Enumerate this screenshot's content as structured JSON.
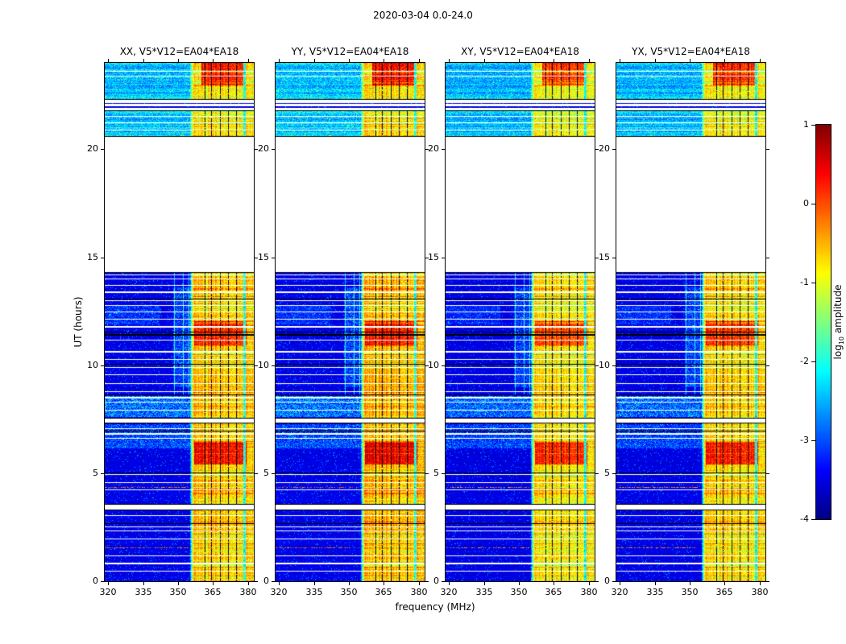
{
  "chart_data": {
    "type": "heatmap",
    "title": "2020-03-04 0.0-24.0",
    "xlabel": "frequency (MHz)",
    "ylabel": "UT (hours)",
    "x_range_mhz": [
      318.5,
      382.5
    ],
    "y_range_ut": [
      0,
      24
    ],
    "xticks": [
      320,
      335,
      350,
      365,
      380
    ],
    "yticks": [
      0,
      5,
      10,
      15,
      20
    ],
    "panels": [
      {
        "id": "XX",
        "title": "XX, V5*V12=EA04*EA18",
        "noise_seed": 11,
        "gain": 1.0
      },
      {
        "id": "YY",
        "title": "YY, V5*V12=EA04*EA18",
        "noise_seed": 23,
        "gain": 1.02
      },
      {
        "id": "XY",
        "title": "XY, V5*V12=EA04*EA18",
        "noise_seed": 37,
        "gain": 0.96
      },
      {
        "id": "YX",
        "title": "YX, V5*V12=EA04*EA18",
        "noise_seed": 49,
        "gain": 0.98
      }
    ],
    "colorbar": {
      "label": "log10 amplitude",
      "label_parts": {
        "prefix": "log",
        "sub": "10",
        "suffix": " amplitude"
      },
      "ticks": [
        1,
        0,
        -1,
        -2,
        -3,
        -4
      ],
      "vmin": -4,
      "vmax": 1,
      "colormap": "jet"
    },
    "data_blocks_ut": [
      [
        0,
        3.27
      ],
      [
        3.56,
        7.3
      ],
      [
        7.56,
        14.3
      ],
      [
        20.58,
        21.78
      ],
      [
        22.28,
        24
      ]
    ],
    "band_level_adjust_per_block": [
      0,
      0,
      0.01,
      -0.045,
      -0.03
    ],
    "rfi_band": {
      "f_start": 356.5,
      "f_end": 382.5,
      "edge_ramp_mhz": 1.5,
      "base_level": 0.68
    },
    "hot_spots": [
      {
        "ut": [
          5.4,
          6.45
        ],
        "f": [
          357.0,
          379.5
        ],
        "level": 0.88
      },
      {
        "ut": [
          10.9,
          12.05
        ],
        "f": [
          357.0,
          379.5
        ],
        "level": 0.84
      },
      {
        "ut": [
          22.95,
          24.0
        ],
        "f": [
          360.0,
          378.5
        ],
        "level": 0.86
      }
    ],
    "low_freq_patches": [
      {
        "ut": [
          6.15,
          7.28
        ],
        "f": [
          318.5,
          356.0
        ],
        "boost": 0.1
      },
      {
        "ut": [
          7.6,
          8.58
        ],
        "f": [
          318.5,
          356.0
        ],
        "boost": 0.15
      },
      {
        "ut": [
          9.0,
          13.6
        ],
        "f": [
          348.0,
          356.5
        ],
        "boost": 0.09
      },
      {
        "ut": [
          11.9,
          12.75
        ],
        "f": [
          318.5,
          342.0
        ],
        "boost": 0.07
      }
    ],
    "white_rows_ut": [
      [
        0.45,
        0.04
      ],
      [
        0.82,
        0.05
      ],
      [
        1.18,
        0.04
      ],
      [
        1.95,
        0.04
      ],
      [
        2.32,
        0.05
      ],
      [
        2.52,
        0.04
      ],
      [
        3.05,
        0.04
      ],
      [
        4.22,
        0.05
      ],
      [
        4.55,
        0.04
      ],
      [
        4.95,
        0.04
      ],
      [
        5.18,
        0.03
      ],
      [
        6.62,
        0.04
      ],
      [
        6.82,
        0.05
      ],
      [
        7.06,
        0.04
      ],
      [
        7.92,
        0.04
      ],
      [
        8.28,
        0.04
      ],
      [
        8.5,
        0.06
      ],
      [
        8.78,
        0.04
      ],
      [
        9.15,
        0.04
      ],
      [
        9.55,
        0.04
      ],
      [
        9.88,
        0.03
      ],
      [
        10.28,
        0.04
      ],
      [
        10.62,
        0.04
      ],
      [
        11.15,
        0.04
      ],
      [
        11.78,
        0.05
      ],
      [
        12.12,
        0.04
      ],
      [
        12.48,
        0.04
      ],
      [
        12.78,
        0.04
      ],
      [
        12.98,
        0.03
      ],
      [
        13.38,
        0.04
      ],
      [
        13.68,
        0.04
      ],
      [
        13.98,
        0.04
      ],
      [
        14.18,
        0.04
      ],
      [
        20.88,
        0.05
      ],
      [
        21.22,
        0.04
      ],
      [
        21.52,
        0.05
      ],
      [
        22.55,
        0.03
      ],
      [
        23.38,
        0.04
      ],
      [
        23.62,
        0.03
      ]
    ],
    "black_rows_ut": [
      [
        2.66,
        0.05
      ],
      [
        3.3,
        0.04
      ],
      [
        3.55,
        0.04
      ],
      [
        5.02,
        0.03
      ],
      [
        6.94,
        0.03
      ],
      [
        7.33,
        0.04
      ],
      [
        7.55,
        0.04
      ],
      [
        8.62,
        0.04
      ],
      [
        10.05,
        0.03
      ],
      [
        11.4,
        0.1
      ],
      [
        11.55,
        0.04
      ],
      [
        13.06,
        0.04
      ],
      [
        14.3,
        0.05
      ],
      [
        20.6,
        0.04
      ],
      [
        21.79,
        0.04
      ],
      [
        22.29,
        0.04
      ],
      [
        23.74,
        0.03
      ]
    ],
    "red_dotted_rows_ut": [
      1.55,
      4.35
    ],
    "stray_rows_ut": [
      21.95,
      22.12
    ],
    "band_black_cols_mhz": [
      361.5,
      364.5,
      368.0,
      371.5,
      375.0
    ],
    "band_cyan_col_mhz": [
      377.9,
      379.2
    ],
    "light_streak_cols": [
      {
        "f": 348.5,
        "ut": [
          8.6,
          14.3
        ]
      },
      {
        "f": 352.2,
        "ut": [
          8.6,
          14.3
        ]
      },
      {
        "f": 354.6,
        "ut": [
          8.6,
          14.3
        ]
      }
    ]
  }
}
